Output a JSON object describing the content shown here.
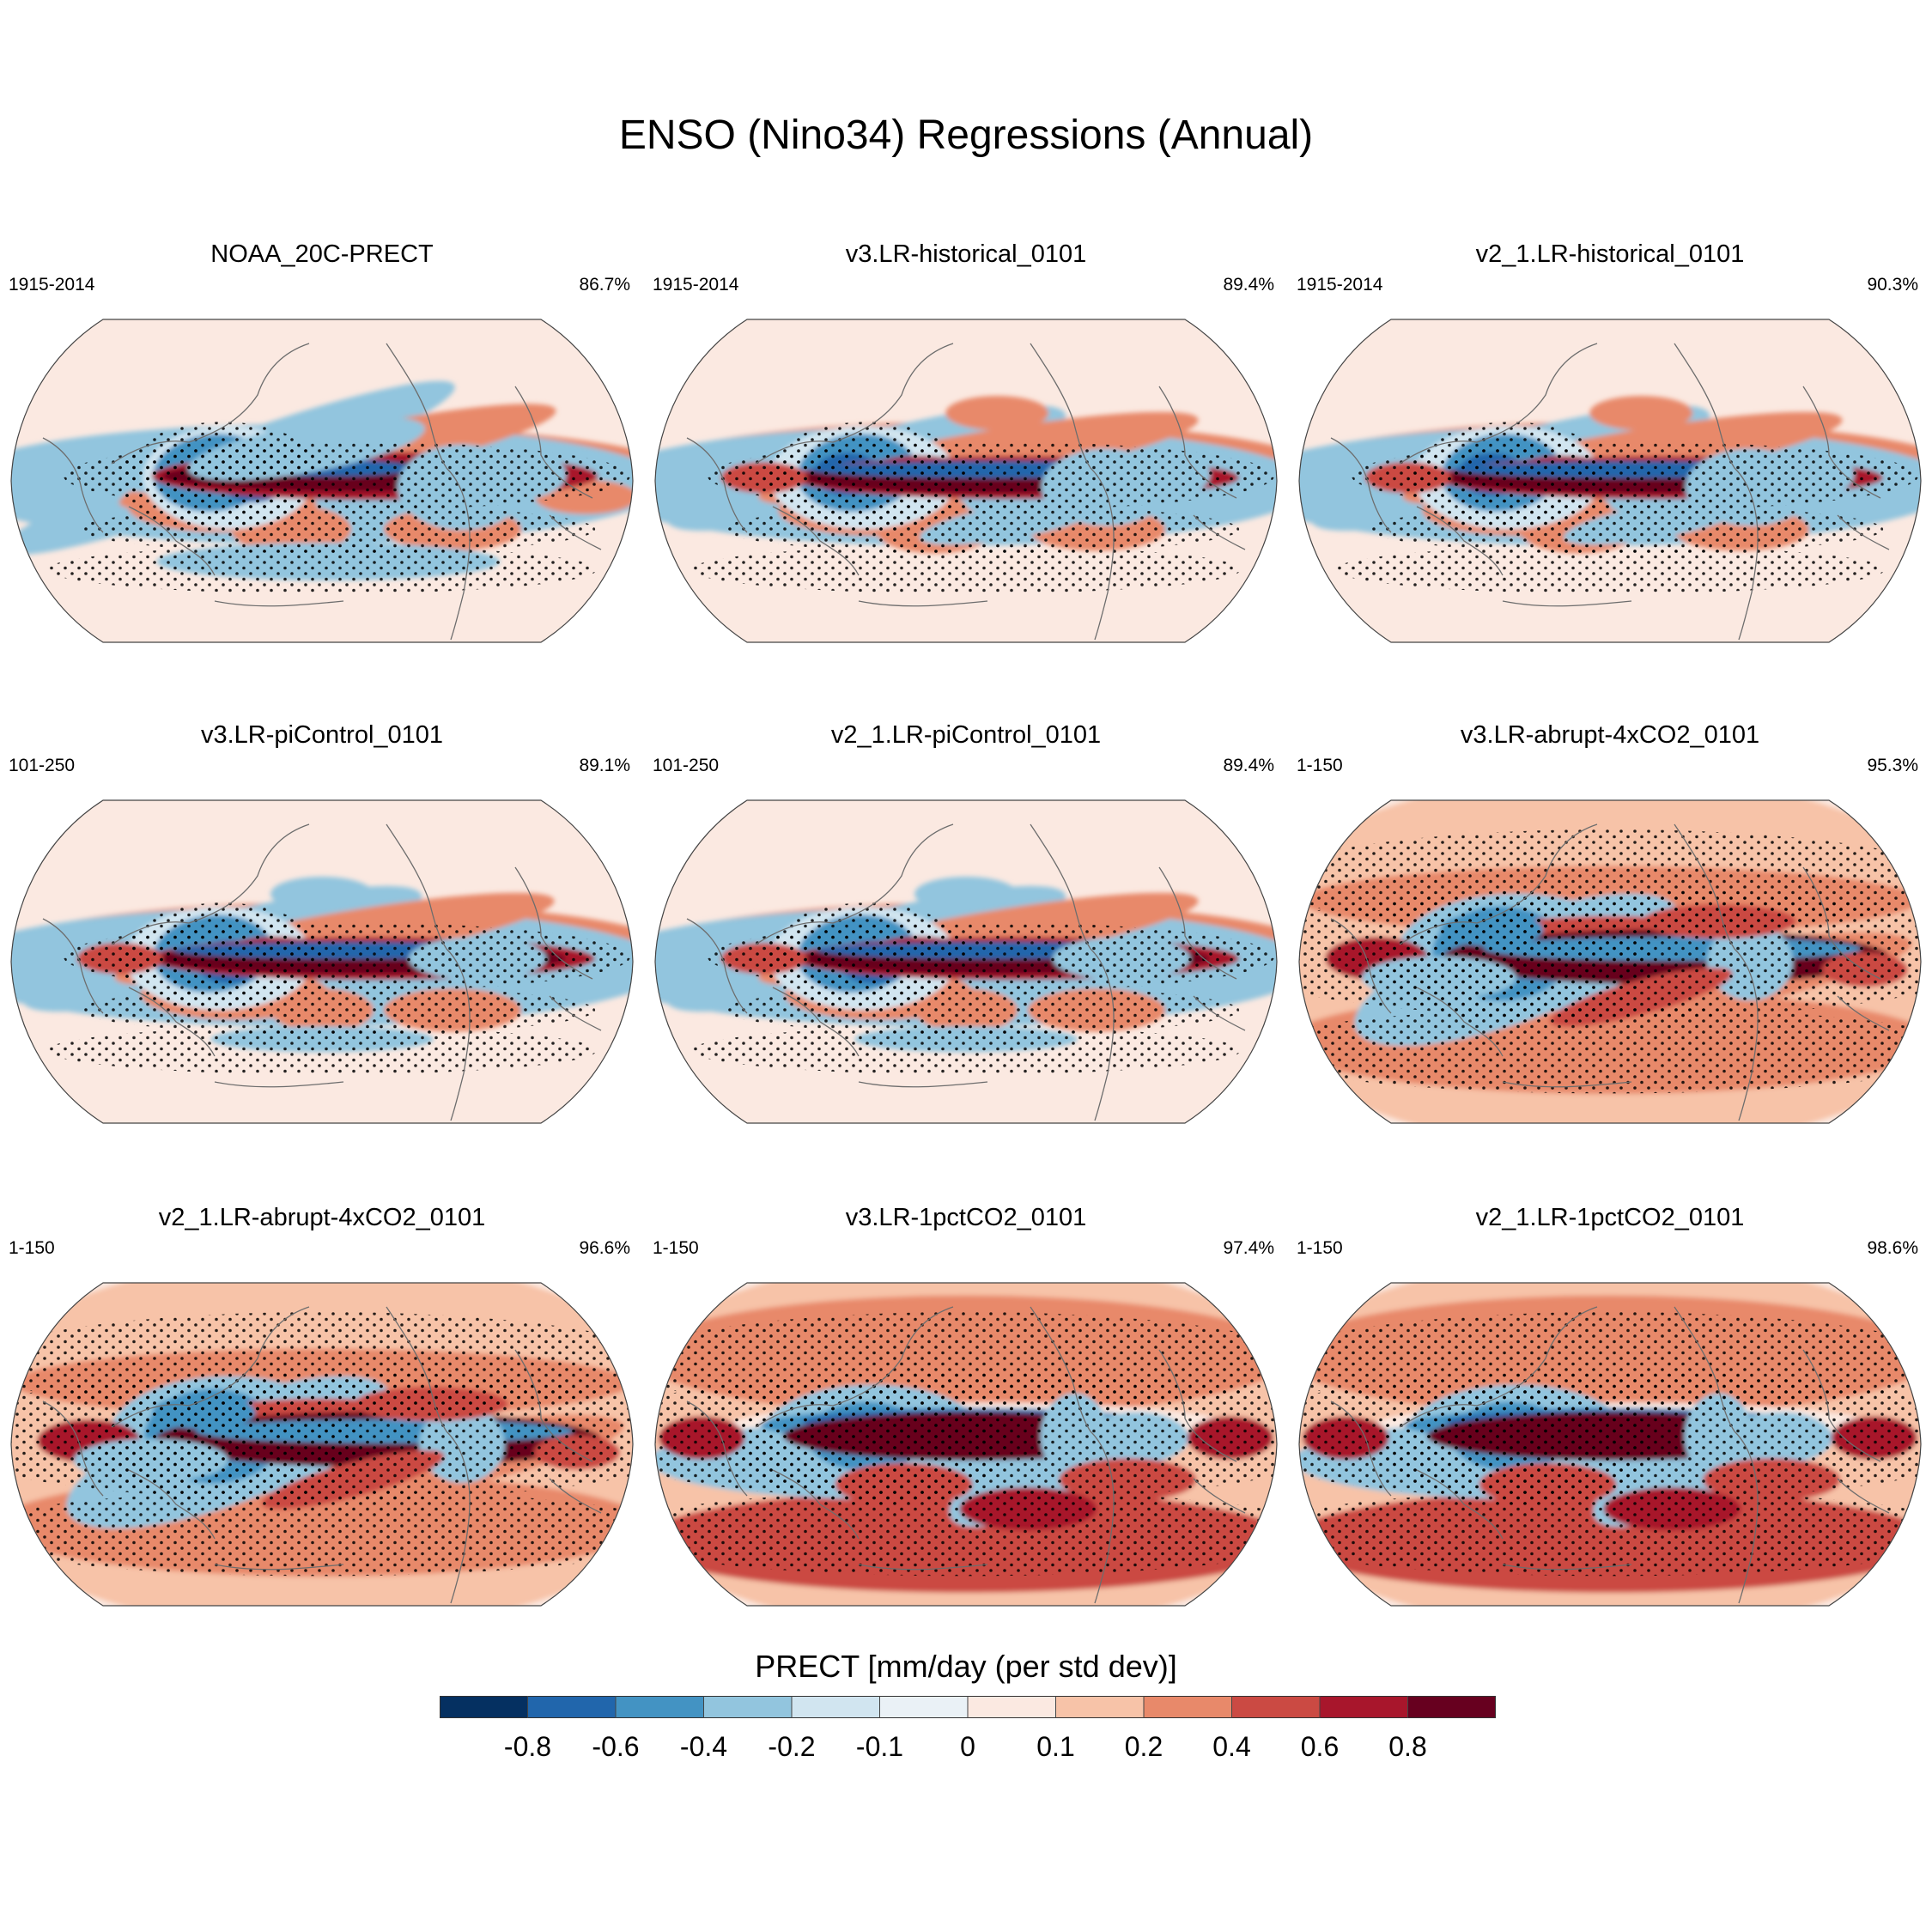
{
  "title": "ENSO (Nino34) Regressions (Annual)",
  "panels": [
    {
      "title": "NOAA_20C-PRECT",
      "years": "1915-2014",
      "percent": "86.7%"
    },
    {
      "title": "v3.LR-historical_0101",
      "years": "1915-2014",
      "percent": "89.4%"
    },
    {
      "title": "v2_1.LR-historical_0101",
      "years": "1915-2014",
      "percent": "90.3%"
    },
    {
      "title": "v3.LR-piControl_0101",
      "years": "101-250",
      "percent": "89.1%"
    },
    {
      "title": "v2_1.LR-piControl_0101",
      "years": "101-250",
      "percent": "89.4%"
    },
    {
      "title": "v3.LR-abrupt-4xCO2_0101",
      "years": "1-150",
      "percent": "95.3%"
    },
    {
      "title": "v2_1.LR-abrupt-4xCO2_0101",
      "years": "1-150",
      "percent": "96.6%"
    },
    {
      "title": "v3.LR-1pctCO2_0101",
      "years": "1-150",
      "percent": "97.4%"
    },
    {
      "title": "v2_1.LR-1pctCO2_0101",
      "years": "1-150",
      "percent": "98.6%"
    }
  ],
  "colorbar": {
    "title": "PRECT [mm/day (per std dev)]",
    "ticks": [
      "-0.8",
      "-0.6",
      "-0.4",
      "-0.2",
      "-0.1",
      "0",
      "0.1",
      "0.2",
      "0.4",
      "0.6",
      "0.8"
    ],
    "colors": [
      "#053061",
      "#2166ac",
      "#4393c3",
      "#92c5de",
      "#d1e5f0",
      "#eaf1f6",
      "#fbe9e1",
      "#f7c3a8",
      "#e8896a",
      "#cb4a43",
      "#a8162c",
      "#67001f"
    ]
  }
}
